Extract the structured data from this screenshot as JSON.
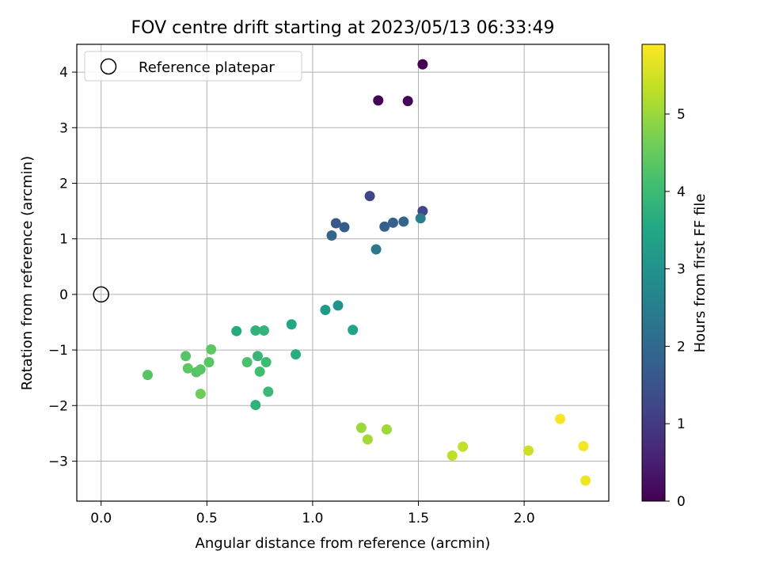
{
  "chart_data": {
    "type": "scatter",
    "title": "FOV centre drift starting at 2023/05/13 06:33:49",
    "xlabel": "Angular distance from reference (arcmin)",
    "ylabel": "Rotation from reference (arcmin)",
    "xlim": [
      -0.115,
      2.4
    ],
    "ylim": [
      -3.72,
      4.5
    ],
    "xticks": [
      "0.0",
      "0.5",
      "1.0",
      "1.5",
      "2.0"
    ],
    "xtick_values": [
      0,
      0.5,
      1.0,
      1.5,
      2.0
    ],
    "yticks": [
      "−3",
      "−2",
      "−1",
      "0",
      "1",
      "2",
      "3",
      "4"
    ],
    "ytick_values": [
      -3,
      -2,
      -1,
      0,
      1,
      2,
      3,
      4
    ],
    "grid": true,
    "legend": {
      "label": "Reference platepar",
      "placement": "top-left",
      "marker": "open-circle"
    },
    "reference_point": {
      "x": 0,
      "y": 0
    },
    "colorbar": {
      "label": "Hours from first FF file",
      "range": [
        0,
        5.9
      ],
      "ticks": [
        "0",
        "1",
        "2",
        "3",
        "4",
        "5"
      ],
      "tick_values": [
        0,
        1,
        2,
        3,
        4,
        5
      ],
      "colormap": "viridis"
    },
    "points": [
      {
        "x": 1.31,
        "y": 3.49,
        "hours": 0.05
      },
      {
        "x": 1.45,
        "y": 3.48,
        "hours": 0.1
      },
      {
        "x": 1.52,
        "y": 4.14,
        "hours": 0.0
      },
      {
        "x": 1.27,
        "y": 1.77,
        "hours": 1.2
      },
      {
        "x": 1.52,
        "y": 1.5,
        "hours": 1.3
      },
      {
        "x": 1.11,
        "y": 1.28,
        "hours": 1.6
      },
      {
        "x": 1.15,
        "y": 1.21,
        "hours": 1.7
      },
      {
        "x": 1.09,
        "y": 1.06,
        "hours": 1.9
      },
      {
        "x": 1.34,
        "y": 1.22,
        "hours": 1.8
      },
      {
        "x": 1.38,
        "y": 1.29,
        "hours": 1.85
      },
      {
        "x": 1.43,
        "y": 1.31,
        "hours": 1.9
      },
      {
        "x": 1.51,
        "y": 1.37,
        "hours": 2.5
      },
      {
        "x": 1.3,
        "y": 0.81,
        "hours": 2.4
      },
      {
        "x": 1.12,
        "y": -0.2,
        "hours": 3.0
      },
      {
        "x": 1.06,
        "y": -0.28,
        "hours": 3.2
      },
      {
        "x": 1.19,
        "y": -0.64,
        "hours": 3.4
      },
      {
        "x": 0.9,
        "y": -0.54,
        "hours": 3.5
      },
      {
        "x": 0.92,
        "y": -1.08,
        "hours": 3.7
      },
      {
        "x": 0.64,
        "y": -0.66,
        "hours": 3.6
      },
      {
        "x": 0.73,
        "y": -0.65,
        "hours": 3.8
      },
      {
        "x": 0.77,
        "y": -0.65,
        "hours": 3.85
      },
      {
        "x": 0.74,
        "y": -1.11,
        "hours": 3.9
      },
      {
        "x": 0.69,
        "y": -1.22,
        "hours": 4.2
      },
      {
        "x": 0.78,
        "y": -1.22,
        "hours": 4.0
      },
      {
        "x": 0.75,
        "y": -1.39,
        "hours": 4.1
      },
      {
        "x": 0.79,
        "y": -1.75,
        "hours": 3.95
      },
      {
        "x": 0.73,
        "y": -1.99,
        "hours": 3.8
      },
      {
        "x": 0.52,
        "y": -0.99,
        "hours": 4.4
      },
      {
        "x": 0.51,
        "y": -1.22,
        "hours": 4.35
      },
      {
        "x": 0.4,
        "y": -1.11,
        "hours": 4.3
      },
      {
        "x": 0.41,
        "y": -1.33,
        "hours": 4.4
      },
      {
        "x": 0.45,
        "y": -1.4,
        "hours": 4.3
      },
      {
        "x": 0.47,
        "y": -1.35,
        "hours": 4.35
      },
      {
        "x": 0.47,
        "y": -1.79,
        "hours": 4.6
      },
      {
        "x": 0.22,
        "y": -1.45,
        "hours": 4.3
      },
      {
        "x": 1.23,
        "y": -2.4,
        "hours": 5.0
      },
      {
        "x": 1.26,
        "y": -2.61,
        "hours": 5.1
      },
      {
        "x": 1.35,
        "y": -2.43,
        "hours": 5.05
      },
      {
        "x": 1.66,
        "y": -2.9,
        "hours": 5.3
      },
      {
        "x": 1.71,
        "y": -2.74,
        "hours": 5.35
      },
      {
        "x": 2.02,
        "y": -2.81,
        "hours": 5.45
      },
      {
        "x": 2.17,
        "y": -2.24,
        "hours": 5.85
      },
      {
        "x": 2.28,
        "y": -2.73,
        "hours": 5.8
      },
      {
        "x": 2.29,
        "y": -3.35,
        "hours": 5.75
      }
    ]
  }
}
